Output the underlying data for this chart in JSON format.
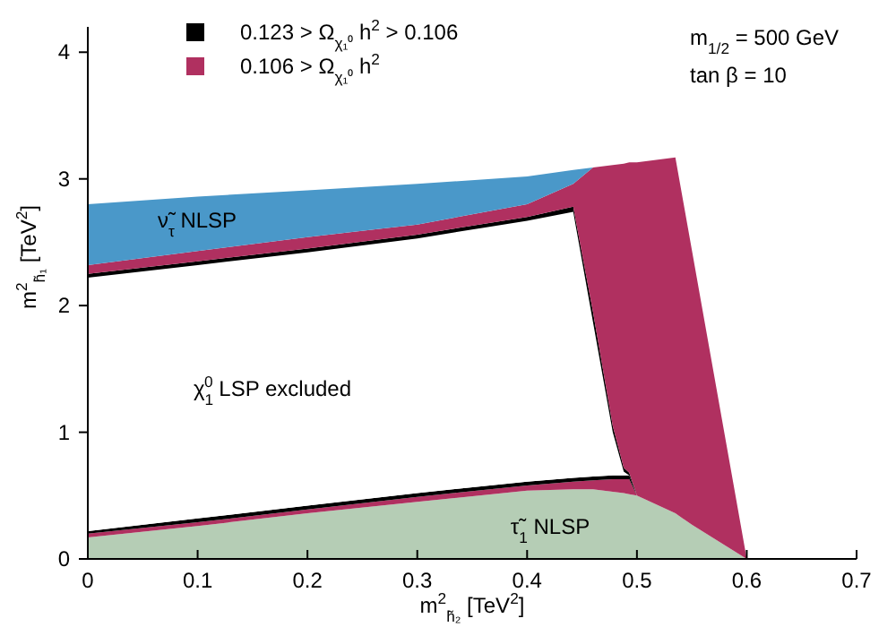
{
  "chart_data": {
    "type": "area",
    "stacked": true,
    "xlabel": "m$^{2}$$_{h̃₂}$ [TeV$^{2}$]",
    "ylabel": "m$^{2}$$_{h̃₁}$ [TeV$^{2}$]",
    "xlim": [
      0,
      0.7
    ],
    "ylim": [
      0,
      4.2
    ],
    "xticks": [
      0,
      0.1,
      0.2,
      0.3,
      0.4,
      0.5,
      0.6,
      0.7
    ],
    "yticks": [
      0,
      1,
      2,
      3,
      4
    ],
    "legend": "top left",
    "grid": false,
    "x": [
      0,
      0.1,
      0.2,
      0.3,
      0.4,
      0.442,
      0.46,
      0.478,
      0.488,
      0.493,
      0.5,
      0.535,
      0.55,
      0.6
    ],
    "series": [
      {
        "color": "#b5cdb5",
        "values": [
          0.17,
          0.26,
          0.36,
          0.45,
          0.54,
          0.55,
          0.55,
          0.53,
          0.52,
          0.51,
          0.5,
          0.36,
          0.27,
          0
        ]
      },
      {
        "color": "#b03060",
        "values": [
          0.03,
          0.03,
          0.03,
          0.04,
          0.04,
          0.06,
          0.07,
          0.1,
          0.11,
          0.12,
          0,
          0,
          0,
          0
        ]
      },
      {
        "name": "0.123 > Ω$_{χ₁⁰}$ h$^{2}$ > 0.106",
        "color": "#000000",
        "values": [
          0.02,
          0.03,
          0.03,
          0.03,
          0.03,
          0.03,
          0.03,
          0.03,
          0.03,
          0.03,
          0,
          0,
          0,
          0
        ]
      },
      {
        "color": "#ffffff",
        "values": [
          2.0,
          2.0,
          2.0,
          2.01,
          2.06,
          2.1,
          1.22,
          0.34,
          0.03,
          0,
          0,
          0,
          0,
          0
        ]
      },
      {
        "color": "#000000",
        "values": [
          0.03,
          0.03,
          0.03,
          0.03,
          0.03,
          0.04,
          0.08,
          0.05,
          0.03,
          0.02,
          0,
          0,
          0,
          0
        ]
      },
      {
        "name": "0.106 > Ω$_{χ₁⁰}$ h$^{2}$",
        "color": "#b03060",
        "values": [
          0.07,
          0.08,
          0.09,
          0.08,
          0.1,
          0.18,
          1.14,
          2.06,
          2.4,
          2.45,
          2.63,
          2.81,
          2.17,
          0
        ]
      },
      {
        "color": "#4a98c9",
        "values": [
          0.48,
          0.43,
          0.37,
          0.32,
          0.22,
          0.11,
          0,
          null,
          null,
          null,
          null,
          null,
          null,
          null
        ]
      }
    ],
    "annotations": [
      "ν̃$_{τ}$ NLSP",
      "χ$_{1}$$^{0}$ LSP excluded",
      "τ̃$_{1}$ NLSP",
      "m$_{1/2}$ = 500 GeV",
      "tan β = 10"
    ]
  }
}
